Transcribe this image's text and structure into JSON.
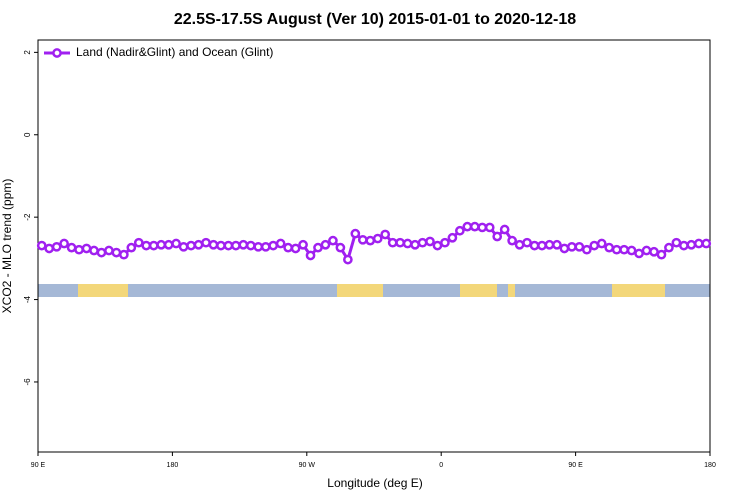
{
  "chart_data": {
    "type": "line",
    "title": "22.5S-17.5S August (Ver 10)   2015-01-01 to 2020-12-18",
    "x_label": "Longitude (deg E)",
    "y_label": "XCO2 - MLO trend (ppm)",
    "x": [
      92.5,
      97.5,
      102.5,
      107.5,
      112.5,
      117.5,
      122.5,
      127.5,
      132.5,
      137.5,
      142.5,
      147.5,
      152.5,
      157.5,
      162.5,
      167.5,
      172.5,
      177.5,
      182.5,
      187.5,
      192.5,
      197.5,
      202.5,
      207.5,
      212.5,
      217.5,
      222.5,
      227.5,
      232.5,
      237.5,
      242.5,
      247.5,
      252.5,
      257.5,
      262.5,
      267.5,
      272.5,
      277.5,
      282.5,
      287.5,
      292.5,
      297.5,
      302.5,
      307.5,
      312.5,
      317.5,
      322.5,
      327.5,
      332.5,
      337.5,
      342.5,
      347.5,
      352.5,
      357.5,
      362.5,
      367.5,
      372.5,
      377.5,
      382.5,
      387.5,
      392.5,
      397.5,
      402.5,
      407.5,
      412.5,
      417.5,
      422.5,
      427.5,
      432.5,
      437.5,
      442.5,
      447.5,
      452.5,
      457.5,
      462.5,
      467.5,
      472.5,
      477.5,
      482.5,
      487.5,
      492.5,
      497.5,
      502.5,
      507.5,
      512.5,
      517.5,
      522.5,
      527.5,
      532.5,
      537.5
    ],
    "series": [
      {
        "name": "Land (Nadir&Glint) and Ocean (Glint)",
        "color": "#a020f0",
        "values": [
          -2.69,
          -2.76,
          -2.72,
          -2.64,
          -2.74,
          -2.79,
          -2.76,
          -2.81,
          -2.86,
          -2.81,
          -2.86,
          -2.91,
          -2.74,
          -2.62,
          -2.69,
          -2.69,
          -2.67,
          -2.67,
          -2.64,
          -2.72,
          -2.69,
          -2.67,
          -2.62,
          -2.67,
          -2.69,
          -2.69,
          -2.69,
          -2.67,
          -2.69,
          -2.72,
          -2.72,
          -2.69,
          -2.64,
          -2.74,
          -2.76,
          -2.67,
          -2.93,
          -2.74,
          -2.67,
          -2.57,
          -2.74,
          -3.03,
          -2.4,
          -2.55,
          -2.57,
          -2.52,
          -2.42,
          -2.62,
          -2.62,
          -2.64,
          -2.67,
          -2.62,
          -2.59,
          -2.69,
          -2.62,
          -2.5,
          -2.33,
          -2.23,
          -2.23,
          -2.25,
          -2.25,
          -2.47,
          -2.3,
          -2.57,
          -2.67,
          -2.62,
          -2.69,
          -2.69,
          -2.67,
          -2.67,
          -2.76,
          -2.72,
          -2.72,
          -2.79,
          -2.69,
          -2.64,
          -2.74,
          -2.79,
          -2.79,
          -2.81,
          -2.88,
          -2.81,
          -2.84,
          -2.91,
          -2.74,
          -2.62,
          -2.69,
          -2.67,
          -2.64,
          -2.64
        ]
      }
    ],
    "xlim": [
      90,
      540
    ],
    "xticks": [
      {
        "value": 90,
        "label": "90 E"
      },
      180,
      {
        "value": 270,
        "label": "90 W"
      },
      {
        "value": 360,
        "label": "0"
      },
      {
        "value": 450,
        "label": "90 E"
      },
      {
        "value": 540,
        "label": "180"
      }
    ],
    "ylim": [
      -7.7,
      2.3
    ],
    "yticks": [
      2,
      0,
      -2,
      -4,
      -6
    ],
    "legend": "top-left"
  }
}
